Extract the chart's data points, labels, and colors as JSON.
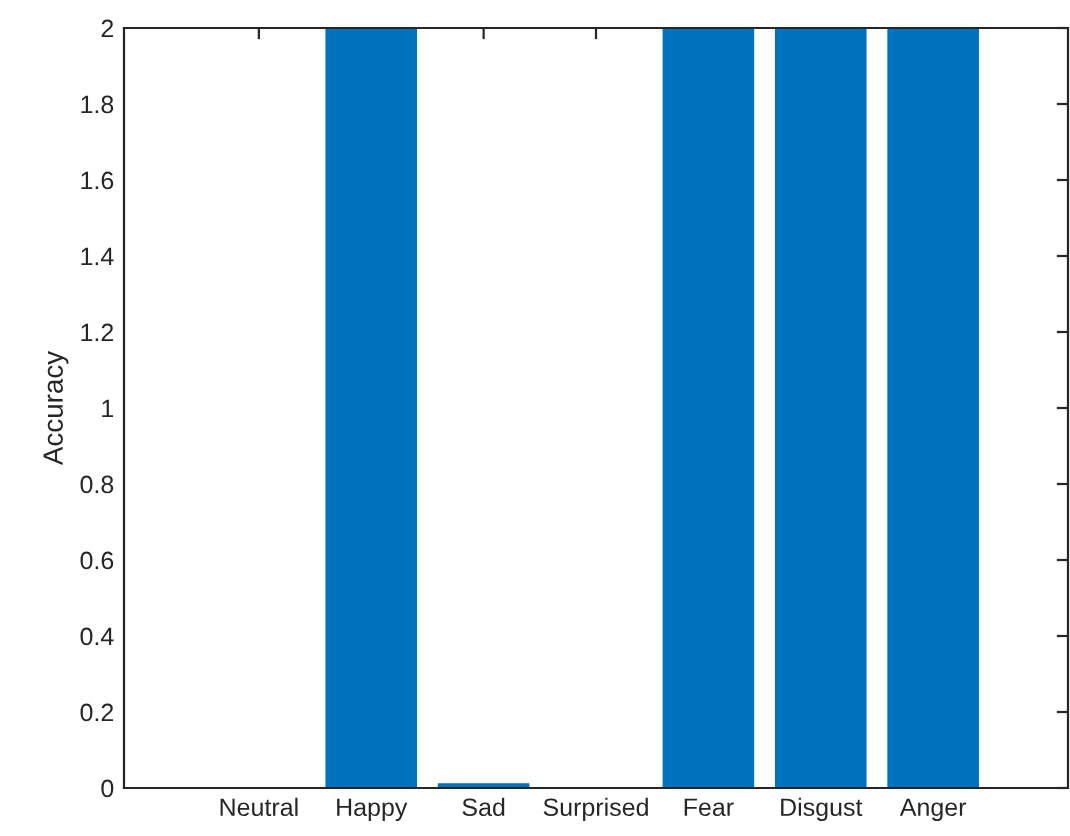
{
  "chart_data": {
    "type": "bar",
    "ylabel": "Accuracy",
    "categories": [
      "Neutral",
      "Happy",
      "Sad",
      "Surprised",
      "Fear",
      "Disgust",
      "Anger"
    ],
    "values": [
      0,
      2,
      0.01,
      0,
      2,
      2,
      2
    ],
    "color": "#0072bd",
    "ylim": [
      0,
      2
    ],
    "yticks": [
      0,
      0.2,
      0.4,
      0.6,
      0.8,
      1,
      1.2,
      1.4,
      1.6,
      1.8,
      2
    ],
    "grid": false
  }
}
